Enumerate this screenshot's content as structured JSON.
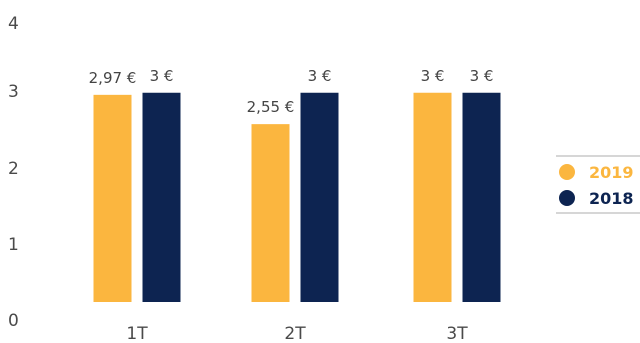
{
  "colors": {
    "series_2019": "#fbb63f",
    "series_2018": "#0d2451",
    "legend_divider": "#d6d6d6"
  },
  "chart_data": {
    "type": "bar",
    "title": "",
    "xlabel": "",
    "ylabel": "",
    "categories": [
      "1T",
      "2T",
      "3T"
    ],
    "series": [
      {
        "name": "2019",
        "values": [
          2.97,
          2.55,
          3
        ],
        "labels": [
          "2,97 €",
          "2,55 €",
          "3 €"
        ]
      },
      {
        "name": "2018",
        "values": [
          3,
          3,
          3
        ],
        "labels": [
          "3 €",
          "3 €",
          "3 €"
        ]
      }
    ],
    "yticks": [
      "0",
      "1",
      "2",
      "3",
      "4"
    ],
    "ylim": [
      0,
      4
    ],
    "grid": false,
    "legend_position": "right"
  }
}
